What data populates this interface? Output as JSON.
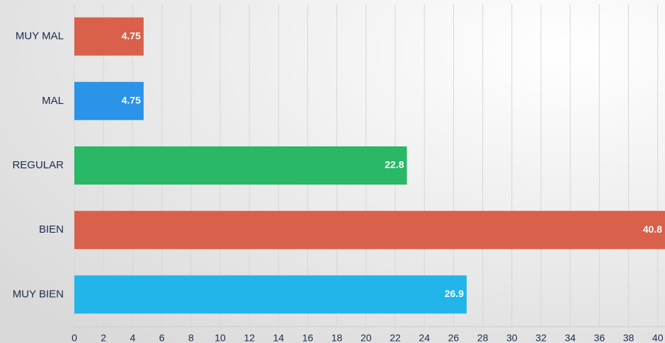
{
  "chart_data": {
    "type": "bar",
    "orientation": "horizontal",
    "categories": [
      "MUY MAL",
      "MAL",
      "REGULAR",
      "BIEN",
      "MUY BIEN"
    ],
    "values": [
      4.75,
      4.75,
      22.8,
      40.8,
      26.9
    ],
    "colors": [
      "#d9604a",
      "#2b93e8",
      "#28b866",
      "#d9604a",
      "#22b5ea"
    ],
    "xlim": [
      0,
      40.5
    ],
    "xticks": [
      0,
      2,
      4,
      6,
      8,
      10,
      12,
      14,
      16,
      18,
      20,
      22,
      24,
      26,
      28,
      30,
      32,
      34,
      36,
      38,
      40
    ],
    "grid": true
  }
}
